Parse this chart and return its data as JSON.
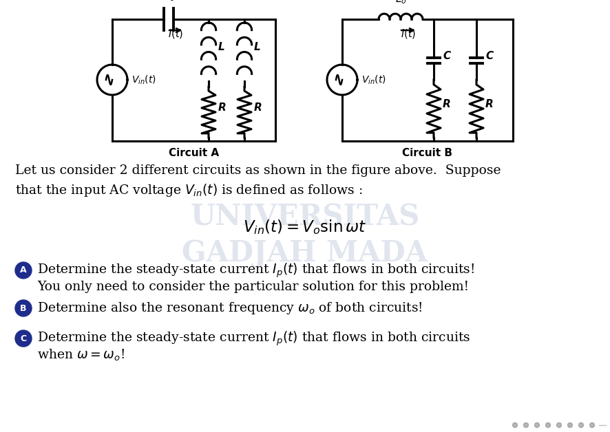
{
  "bg_color": "#ffffff",
  "circuit_a_label": "Circuit A",
  "circuit_b_label": "Circuit B",
  "text_line1": "Let us consider 2 different circuits as shown in the figure above.  Suppose",
  "text_line2": "that the input AC voltage $V_{in}(t)$ is defined as follows :",
  "equation": "$V_{in}(t) = V_o \\sin \\omega t$",
  "bullet_a_text1": "Determine the steady-state current $I_p(t)$ that flows in both circuits!",
  "bullet_a_text2": "You only need to consider the particular solution for this problem!",
  "bullet_b_text": "Determine also the resonant frequency $\\omega_o$ of both circuits!",
  "bullet_c_text1": "Determine the steady-state current $I_p(t)$ that flows in both circuits",
  "bullet_c_text2": "when $\\omega = \\omega_o$!",
  "font_size_body": 13.5,
  "watermark_text": "UNIVERSITAS",
  "watermark_text2": "GADJAH MADA",
  "bullet_color": "#1e2d8c"
}
